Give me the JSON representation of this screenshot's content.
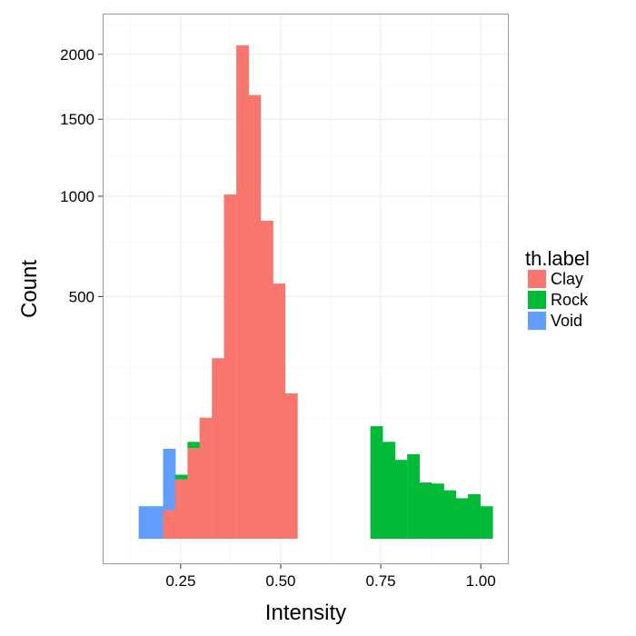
{
  "chart_data": {
    "type": "bar",
    "subtype": "stacked-histogram",
    "xlabel": "Intensity",
    "ylabel": "Count",
    "y_scale": "sqrt",
    "xlim": [
      0.055,
      1.07
    ],
    "ylim": [
      0,
      2350
    ],
    "x_ticks": [
      {
        "value": 0.25,
        "label": "0.25"
      },
      {
        "value": 0.5,
        "label": "0.50"
      },
      {
        "value": 0.75,
        "label": "0.75"
      },
      {
        "value": 1.0,
        "label": "1.00"
      }
    ],
    "y_ticks": [
      {
        "value": 500,
        "label": "500"
      },
      {
        "value": 1000,
        "label": "1000"
      },
      {
        "value": 1500,
        "label": "1500"
      },
      {
        "value": 2000,
        "label": "2000"
      }
    ],
    "grid": true,
    "legend": {
      "title": "th.label",
      "placement": "right",
      "entries": [
        {
          "label": "Clay",
          "color": "#F8766D"
        },
        {
          "label": "Rock",
          "color": "#00BA38"
        },
        {
          "label": "Void",
          "color": "#619CFF"
        }
      ]
    },
    "bin_width": 0.0305,
    "bin_starts": [
      0.114,
      0.145,
      0.175,
      0.206,
      0.236,
      0.267,
      0.297,
      0.328,
      0.358,
      0.389,
      0.419,
      0.45,
      0.48,
      0.511,
      0.541,
      0.572,
      0.602,
      0.633,
      0.663,
      0.694,
      0.724,
      0.755,
      0.785,
      0.816,
      0.846,
      0.877,
      0.907,
      0.938,
      0.968,
      0.999
    ],
    "series": [
      {
        "name": "Clay",
        "color": "#F8766D",
        "values": [
          0,
          0,
          0,
          7,
          30,
          70,
          125,
          278,
          1010,
          2075,
          1678,
          862,
          555,
          180,
          0,
          0,
          0,
          0,
          0,
          0,
          0,
          0,
          0,
          0,
          0,
          0,
          0,
          0,
          0,
          0
        ]
      },
      {
        "name": "Rock",
        "color": "#00BA38",
        "values": [
          0,
          0,
          0,
          0,
          5,
          10,
          0,
          0,
          0,
          0,
          0,
          0,
          0,
          0,
          0,
          0,
          0,
          0,
          0,
          0,
          108,
          80,
          53,
          61,
          27,
          26,
          20,
          14,
          17,
          9
        ]
      },
      {
        "name": "Void",
        "color": "#619CFF",
        "values": [
          0,
          9,
          9,
          62,
          0,
          0,
          0,
          0,
          0,
          0,
          0,
          0,
          0,
          0,
          0,
          0,
          0,
          0,
          0,
          0,
          0,
          0,
          0,
          0,
          0,
          0,
          0,
          0,
          0,
          0
        ]
      }
    ]
  }
}
